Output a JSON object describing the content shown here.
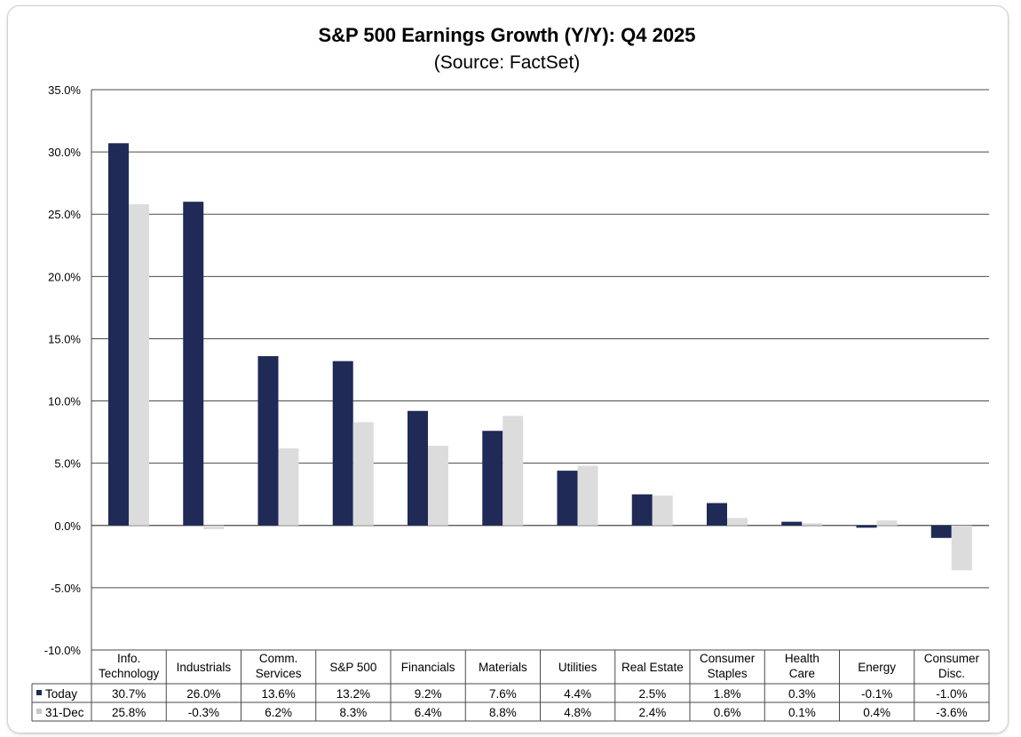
{
  "chart_data": {
    "type": "bar",
    "title": "S&P 500 Earnings Growth (Y/Y): Q4 2025",
    "subtitle": "(Source: FactSet)",
    "categories": [
      [
        "Info.",
        "Technology"
      ],
      [
        "Industrials"
      ],
      [
        "Comm.",
        "Services"
      ],
      [
        "S&P 500"
      ],
      [
        "Financials"
      ],
      [
        "Materials"
      ],
      [
        "Utilities"
      ],
      [
        "Real Estate"
      ],
      [
        "Consumer",
        "Staples"
      ],
      [
        "Health",
        "Care"
      ],
      [
        "Energy"
      ],
      [
        "Consumer",
        "Disc."
      ]
    ],
    "series": [
      {
        "name": "Today",
        "color": "#1f2a56",
        "values": [
          30.7,
          26.0,
          13.6,
          13.2,
          9.2,
          7.6,
          4.4,
          2.5,
          1.8,
          0.3,
          -0.1,
          -1.0
        ],
        "labels": [
          "30.7%",
          "26.0%",
          "13.6%",
          "13.2%",
          "9.2%",
          "7.6%",
          "4.4%",
          "2.5%",
          "1.8%",
          "0.3%",
          "-0.1%",
          "-1.0%"
        ]
      },
      {
        "name": "31-Dec",
        "color": "#dcdcdc",
        "values": [
          25.8,
          -0.3,
          6.2,
          8.3,
          6.4,
          8.8,
          4.8,
          2.4,
          0.6,
          0.1,
          0.4,
          -3.6
        ],
        "labels": [
          "25.8%",
          "-0.3%",
          "6.2%",
          "8.3%",
          "6.4%",
          "8.8%",
          "4.8%",
          "2.4%",
          "0.6%",
          "0.1%",
          "0.4%",
          "-3.6%"
        ]
      }
    ],
    "ylim": [
      -10,
      35
    ],
    "yticks": [
      35,
      30,
      25,
      20,
      15,
      10,
      5,
      0,
      -5,
      -10
    ],
    "ytick_labels": [
      "35.0%",
      "30.0%",
      "25.0%",
      "20.0%",
      "15.0%",
      "10.0%",
      "5.0%",
      "0.0%",
      "-5.0%",
      "-10.0%"
    ],
    "grid": true,
    "legend": "data table below chart",
    "xlabel": "",
    "ylabel": ""
  }
}
